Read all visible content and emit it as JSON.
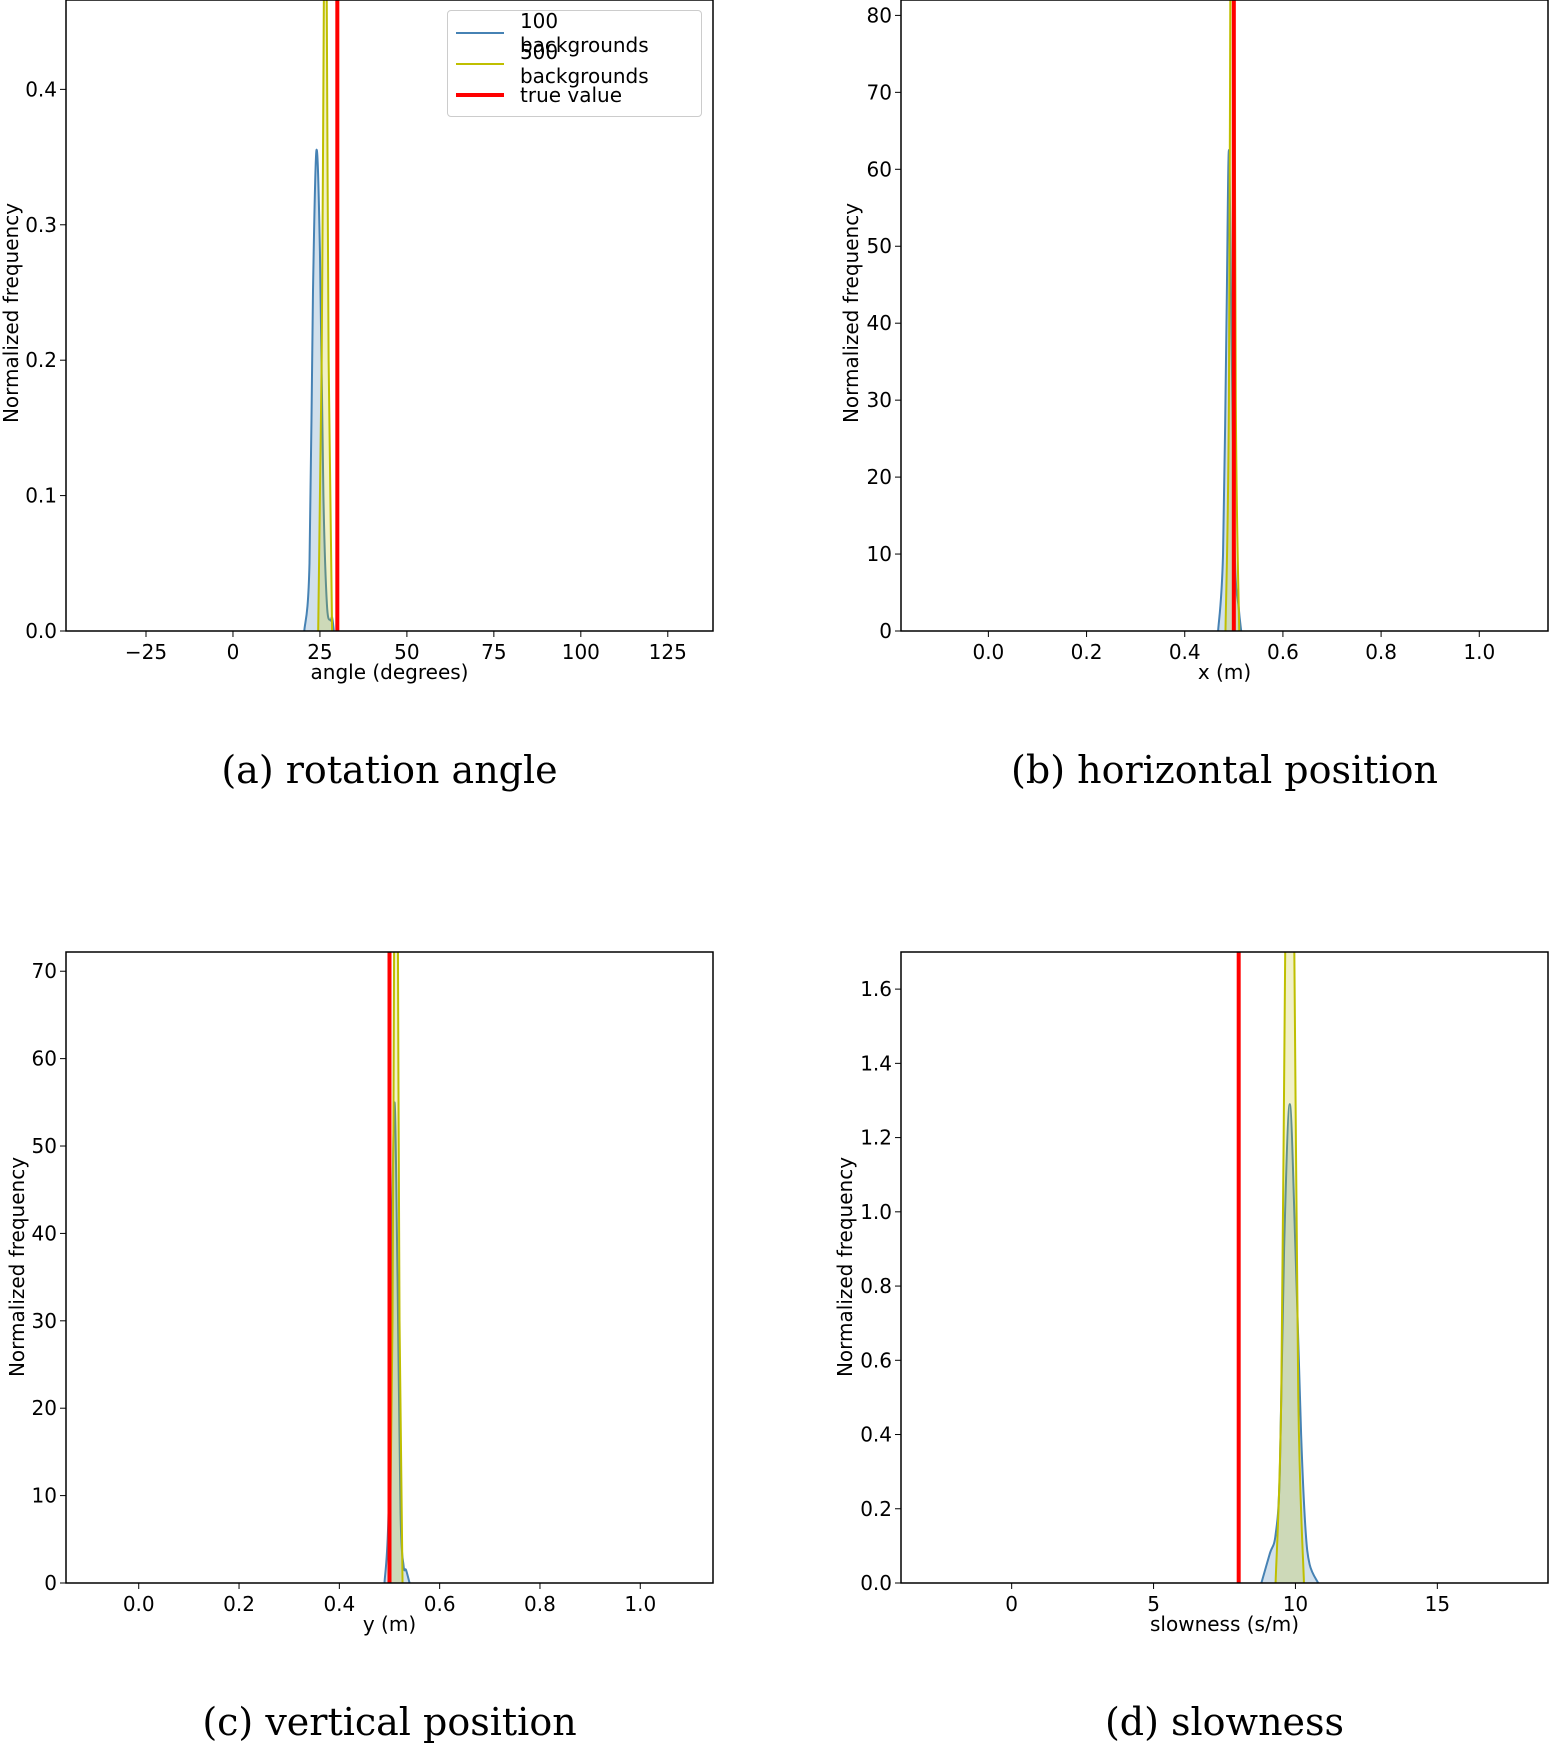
{
  "colors": {
    "series_100": "#4682b4",
    "series_100_fill": "rgba(70,130,180,0.25)",
    "series_500": "#bfbf00",
    "series_500_fill": "rgba(191,191,0,0.22)",
    "true_value": "#ff0000"
  },
  "legend": {
    "items": [
      {
        "label": "100 backgrounds",
        "color": "#4682b4"
      },
      {
        "label": "500 backgrounds",
        "color": "#bfbf00"
      },
      {
        "label": "true value",
        "color": "#ff0000"
      }
    ]
  },
  "panels": [
    {
      "caption": "(a) rotation angle",
      "xlabel": "angle (degrees)",
      "ylabel": "Normalized frequency"
    },
    {
      "caption": "(b) horizontal position",
      "xlabel": "x (m)",
      "ylabel": "Normalized frequency"
    },
    {
      "caption": "(c) vertical position",
      "xlabel": "y (m)",
      "ylabel": "Normalized frequency"
    },
    {
      "caption": "(d) slowness",
      "xlabel": "slowness (s/m)",
      "ylabel": "Normalized frequency"
    }
  ],
  "chart_data": [
    {
      "type": "area",
      "title": "(a) rotation angle",
      "xlabel": "angle (degrees)",
      "ylabel": "Normalized frequency",
      "xlim": [
        -48,
        138
      ],
      "ylim": [
        0,
        0.466
      ],
      "xticks": [
        -25,
        0,
        25,
        50,
        75,
        100,
        125
      ],
      "xtick_labels": [
        "−25",
        "0",
        "25",
        "50",
        "75",
        "100",
        "125"
      ],
      "yticks": [
        0.0,
        0.1,
        0.2,
        0.3,
        0.4
      ],
      "ytick_labels": [
        "0.0",
        "0.1",
        "0.2",
        "0.3",
        "0.4"
      ],
      "grid": false,
      "legend_position": "upper right",
      "series": [
        {
          "name": "100 backgrounds",
          "kind": "kde",
          "center": 24,
          "peak": 0.355,
          "x": [
            20.5,
            22,
            23,
            24,
            25,
            26,
            27,
            28,
            28.5,
            29
          ],
          "y": [
            0.0,
            0.05,
            0.25,
            0.355,
            0.28,
            0.1,
            0.02,
            0.008,
            0.01,
            0.0
          ]
        },
        {
          "name": "500 backgrounds",
          "kind": "kde",
          "center": 26.5,
          "peak": 0.6,
          "x": [
            24.5,
            25.5,
            26.2,
            26.5,
            26.9,
            27.5,
            28.5
          ],
          "y": [
            0.0,
            0.2,
            0.5,
            0.6,
            0.5,
            0.2,
            0.0
          ]
        }
      ],
      "true_value": 30
    },
    {
      "type": "area",
      "title": "(b) horizontal position",
      "xlabel": "x (m)",
      "ylabel": "Normalized frequency",
      "xlim": [
        -0.178,
        1.14
      ],
      "ylim": [
        0,
        82
      ],
      "xticks": [
        0.0,
        0.2,
        0.4,
        0.6,
        0.8,
        1.0
      ],
      "xtick_labels": [
        "0.0",
        "0.2",
        "0.4",
        "0.6",
        "0.8",
        "1.0"
      ],
      "yticks": [
        0,
        10,
        20,
        30,
        40,
        50,
        60,
        70,
        80
      ],
      "ytick_labels": [
        "0",
        "10",
        "20",
        "30",
        "40",
        "50",
        "60",
        "70",
        "80"
      ],
      "grid": false,
      "series": [
        {
          "name": "100 backgrounds",
          "kind": "kde",
          "center": 0.49,
          "peak": 62.5,
          "x": [
            0.468,
            0.478,
            0.485,
            0.49,
            0.495,
            0.502,
            0.51,
            0.515
          ],
          "y": [
            0,
            10,
            40,
            62.5,
            40,
            10,
            3,
            0
          ]
        },
        {
          "name": "500 backgrounds",
          "kind": "kde",
          "center": 0.497,
          "peak": 150,
          "x": [
            0.483,
            0.49,
            0.494,
            0.497,
            0.5,
            0.504,
            0.511
          ],
          "y": [
            0,
            30,
            110,
            150,
            110,
            30,
            0
          ]
        }
      ],
      "true_value": 0.5
    },
    {
      "type": "area",
      "title": "(c) vertical position",
      "xlabel": "y (m)",
      "ylabel": "Normalized frequency",
      "xlim": [
        -0.145,
        1.145
      ],
      "ylim": [
        0,
        72.2
      ],
      "xticks": [
        0.0,
        0.2,
        0.4,
        0.6,
        0.8,
        1.0
      ],
      "xtick_labels": [
        "0.0",
        "0.2",
        "0.4",
        "0.6",
        "0.8",
        "1.0"
      ],
      "yticks": [
        0,
        10,
        20,
        30,
        40,
        50,
        60,
        70
      ],
      "ytick_labels": [
        "0",
        "10",
        "20",
        "30",
        "40",
        "50",
        "60",
        "70"
      ],
      "grid": false,
      "series": [
        {
          "name": "100 backgrounds",
          "kind": "kde",
          "center": 0.51,
          "peak": 55,
          "x": [
            0.49,
            0.498,
            0.504,
            0.51,
            0.516,
            0.522,
            0.528,
            0.533,
            0.54
          ],
          "y": [
            0,
            8,
            35,
            55,
            35,
            8,
            2,
            1.5,
            0
          ]
        },
        {
          "name": "500 backgrounds",
          "kind": "kde",
          "center": 0.513,
          "peak": 110,
          "x": [
            0.5,
            0.506,
            0.51,
            0.513,
            0.516,
            0.52,
            0.526
          ],
          "y": [
            0,
            30,
            85,
            110,
            85,
            30,
            0
          ]
        }
      ],
      "true_value": 0.5
    },
    {
      "type": "area",
      "title": "(d) slowness",
      "xlabel": "slowness (s/m)",
      "ylabel": "Normalized frequency",
      "xlim": [
        -3.9,
        18.9
      ],
      "ylim": [
        0,
        1.7
      ],
      "xticks": [
        0,
        5,
        10,
        15
      ],
      "xtick_labels": [
        "0",
        "5",
        "10",
        "15"
      ],
      "yticks": [
        0.0,
        0.2,
        0.4,
        0.6,
        0.8,
        1.0,
        1.2,
        1.4,
        1.6
      ],
      "ytick_labels": [
        "0.0",
        "0.2",
        "0.4",
        "0.6",
        "0.8",
        "1.0",
        "1.2",
        "1.4",
        "1.6"
      ],
      "grid": false,
      "series": [
        {
          "name": "100 backgrounds",
          "kind": "kde",
          "center": 9.8,
          "peak": 1.29,
          "x": [
            8.8,
            9.1,
            9.3,
            9.45,
            9.6,
            9.8,
            10.0,
            10.2,
            10.35,
            10.5,
            10.8
          ],
          "y": [
            0.0,
            0.08,
            0.13,
            0.3,
            0.9,
            1.29,
            0.9,
            0.4,
            0.15,
            0.05,
            0.0
          ]
        },
        {
          "name": "500 backgrounds",
          "kind": "kde",
          "center": 9.8,
          "peak": 2.5,
          "x": [
            9.3,
            9.5,
            9.65,
            9.8,
            9.95,
            10.1,
            10.3
          ],
          "y": [
            0.0,
            0.5,
            1.8,
            2.5,
            1.8,
            0.5,
            0.0
          ]
        }
      ],
      "true_value": 8
    }
  ]
}
